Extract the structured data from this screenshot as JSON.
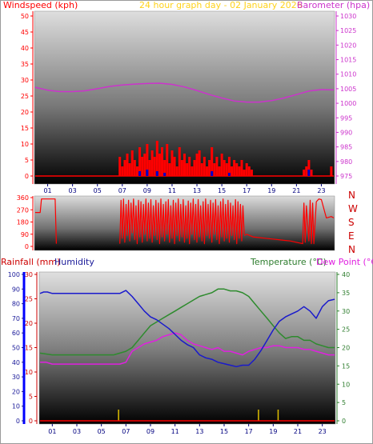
{
  "header": {
    "left": "Windspeed (kph)",
    "center": "24 hour graph day - 02 January 2026",
    "right": "Barometer (hpa)"
  },
  "compass": [
    "N",
    "W",
    "S",
    "E",
    "N"
  ],
  "bottom_header": {
    "rainfall": "Rainfall (mm)",
    "humidity": "Humidity",
    "temperature": "Temperature (°C)",
    "dewpoint": "Dew Point (°C)"
  },
  "colors": {
    "wind": "#ff0000",
    "gust": "#0000cc",
    "barometer": "#cc33cc",
    "direction": "#ff0000",
    "humidity": "#1a1acc",
    "temperature": "#2e8b2e",
    "dewpoint": "#e020e0",
    "rainfall": "#ff0000",
    "rain_left_axis": "#0000ff",
    "title": "#ffd21a"
  },
  "chart_data": [
    {
      "type": "line",
      "name": "wind-barometer",
      "x_ticks": [
        "01",
        "03",
        "05",
        "07",
        "09",
        "11",
        "13",
        "15",
        "17",
        "19",
        "21",
        "23"
      ],
      "xlim": [
        0,
        24
      ],
      "y_left_label": "Windspeed (kph)",
      "y_left_ticks": [
        0,
        5,
        10,
        15,
        20,
        25,
        30,
        35,
        40,
        45,
        50
      ],
      "ylim_left": [
        0,
        50
      ],
      "y_right_label": "Barometer (hpa)",
      "y_right_ticks": [
        975,
        980,
        985,
        990,
        995,
        1000,
        1005,
        1010,
        1015,
        1020,
        1025,
        1030
      ],
      "ylim_right": [
        975,
        1030
      ],
      "barometer": {
        "x": [
          0,
          1,
          2,
          3,
          4,
          5,
          6,
          7,
          8,
          9,
          10,
          11,
          12,
          13,
          14,
          15,
          16,
          17,
          18,
          19,
          20,
          21,
          22,
          23,
          24
        ],
        "y": [
          1005.5,
          1004.5,
          1004,
          1004,
          1004.3,
          1005,
          1005.8,
          1006.3,
          1006.6,
          1006.8,
          1006.9,
          1006.5,
          1005.6,
          1004.4,
          1003,
          1001.8,
          1000.8,
          1000.4,
          1000.4,
          1000.9,
          1001.8,
          1003,
          1004.2,
          1004.7,
          1004.6
        ]
      },
      "wind_gust_bars": {
        "x": [
          6.8,
          7,
          7.2,
          7.4,
          7.6,
          7.8,
          8,
          8.2,
          8.4,
          8.6,
          8.8,
          9,
          9.2,
          9.4,
          9.6,
          9.8,
          10,
          10.2,
          10.4,
          10.6,
          10.8,
          11,
          11.2,
          11.4,
          11.6,
          11.8,
          12,
          12.2,
          12.4,
          12.6,
          12.8,
          13,
          13.2,
          13.4,
          13.6,
          13.8,
          14,
          14.2,
          14.4,
          14.6,
          14.8,
          15,
          15.2,
          15.4,
          15.6,
          15.8,
          16,
          16.2,
          16.4,
          16.6,
          16.8,
          17,
          17.2,
          17.4,
          21.6,
          21.8,
          22,
          22.2,
          23.8
        ],
        "y": [
          6,
          3,
          5,
          7,
          4,
          8,
          5,
          3,
          9,
          6,
          7,
          10,
          5,
          8,
          6,
          11,
          7,
          9,
          5,
          10,
          4,
          8,
          6,
          3,
          9,
          5,
          7,
          4,
          6,
          3,
          5,
          7,
          8,
          4,
          6,
          3,
          5,
          9,
          4,
          6,
          3,
          7,
          5,
          4,
          6,
          3,
          5,
          4,
          3,
          5,
          2,
          4,
          3,
          2,
          2,
          3,
          5,
          2,
          3
        ]
      },
      "wind_avg_bars": {
        "x": [
          8.4,
          9,
          9.8,
          10.4,
          14.2,
          15.6,
          22
        ],
        "y": [
          1.5,
          2,
          1.5,
          1,
          1.5,
          1,
          2
        ]
      }
    },
    {
      "type": "line",
      "name": "wind-direction",
      "xlim": [
        0,
        24
      ],
      "y_ticks": [
        0,
        90,
        180,
        270,
        360
      ],
      "ylim": [
        0,
        360
      ],
      "series": [
        {
          "x": [
            0,
            0.4,
            0.5,
            1,
            1.6,
            1.7
          ],
          "y": [
            250,
            250,
            350,
            350,
            350,
            20
          ]
        },
        {
          "x": [
            6.8,
            6.9,
            7.0,
            7.1,
            7.2,
            7.3,
            7.4,
            7.5,
            7.6,
            7.7,
            7.8,
            7.9,
            8.0,
            8.1,
            8.2,
            8.3,
            8.4,
            8.5,
            8.6,
            8.7,
            8.8,
            8.9,
            9.0,
            9.1,
            9.2,
            9.3,
            9.4,
            9.5,
            9.6,
            9.7,
            9.8,
            9.9,
            10.0,
            10.1,
            10.2,
            10.3,
            10.4,
            10.5,
            10.6,
            10.7,
            10.8,
            10.9,
            11.0,
            11.1,
            11.2,
            11.3,
            11.4,
            11.5,
            11.6,
            11.7,
            11.8,
            11.9,
            12.0,
            12.1,
            12.2,
            12.3,
            12.4,
            12.5,
            12.6,
            12.7,
            12.8,
            12.9,
            13.0,
            13.1,
            13.2,
            13.3,
            13.4,
            13.5,
            13.6,
            13.7,
            13.8,
            13.9,
            14.0,
            14.1,
            14.2,
            14.3,
            14.4,
            14.5,
            14.6,
            14.7,
            14.8,
            14.9,
            15.0,
            15.1,
            15.2,
            15.3,
            15.4,
            15.5,
            15.6,
            15.7,
            15.8,
            15.9,
            16.0,
            16.1,
            16.2,
            16.3,
            16.4,
            16.5,
            16.6,
            16.7,
            16.8
          ],
          "y": [
            20,
            340,
            60,
            350,
            30,
            310,
            80,
            340,
            40,
            320,
            100,
            350,
            50,
            300,
            20,
            340,
            70,
            330,
            30,
            310,
            90,
            350,
            40,
            320,
            60,
            345,
            30,
            300,
            80,
            340,
            50,
            320,
            20,
            350,
            70,
            310,
            40,
            330,
            90,
            345,
            30,
            300,
            60,
            340,
            20,
            320,
            80,
            350,
            40,
            310,
            70,
            345,
            30,
            300,
            60,
            335,
            20,
            320,
            90,
            350,
            50,
            310,
            30,
            345,
            70,
            300,
            40,
            330,
            20,
            350,
            80,
            310,
            60,
            340,
            30,
            320,
            90,
            345,
            50,
            300,
            20,
            330,
            70,
            350,
            40,
            310,
            60,
            340,
            30,
            320,
            80,
            300,
            50,
            345,
            20,
            330,
            60,
            310,
            40,
            300,
            90
          ]
        },
        {
          "x": [
            16.8,
            17,
            17.5,
            18,
            18.5,
            19,
            19.5,
            20,
            20.5,
            21,
            21.5,
            21.6,
            21.7,
            21.8,
            22,
            22.1,
            22.2,
            22.3,
            22.4,
            22.6,
            22.8,
            23,
            23.4,
            23.8,
            24
          ],
          "y": [
            80,
            90,
            70,
            65,
            60,
            55,
            50,
            45,
            40,
            30,
            20,
            320,
            30,
            300,
            40,
            340,
            20,
            320,
            20,
            330,
            350,
            345,
            210,
            220,
            210
          ]
        }
      ]
    },
    {
      "type": "line",
      "name": "temp-humidity-rain",
      "x_ticks": [
        "01",
        "03",
        "05",
        "07",
        "09",
        "11",
        "13",
        "15",
        "17",
        "19",
        "21",
        "23"
      ],
      "xlim": [
        0,
        24
      ],
      "y_rainfall_label": "Rainfall (mm)",
      "y_rainfall_ticks": [
        0,
        5,
        10,
        15,
        20,
        25,
        30
      ],
      "ylim_rainfall": [
        0,
        30
      ],
      "y_humidity_label": "Humidity",
      "y_humidity_ticks": [
        0,
        10,
        20,
        30,
        40,
        50,
        60,
        70,
        80,
        90,
        100
      ],
      "ylim_humidity": [
        0,
        100
      ],
      "y_temperature_label": "Temperature (°C)",
      "y_temperature_ticks": [
        0,
        5,
        10,
        15,
        20,
        25,
        30,
        35,
        40
      ],
      "ylim_temperature": [
        0,
        40
      ],
      "humidity": {
        "x": [
          0,
          0.3,
          0.6,
          1,
          2,
          3,
          4,
          5,
          6,
          6.5,
          7,
          7.5,
          8,
          8.5,
          9,
          9.5,
          10,
          10.5,
          11,
          11.5,
          12,
          12.5,
          13,
          13.5,
          14,
          14.5,
          15,
          15.5,
          16,
          16.5,
          17,
          17.5,
          18,
          18.5,
          19,
          19.5,
          20,
          20.5,
          21,
          21.5,
          22,
          22.5,
          23,
          23.5,
          24
        ],
        "y": [
          87,
          88,
          88,
          87,
          87,
          87,
          87,
          87,
          87,
          87,
          89,
          85,
          80,
          75,
          71,
          69,
          66,
          63,
          59,
          55,
          52,
          50,
          45,
          43,
          42,
          40,
          39,
          38,
          37,
          38,
          38,
          42,
          48,
          55,
          62,
          68,
          71,
          73,
          75,
          78,
          75,
          70,
          78,
          82,
          83
        ]
      },
      "temperature": {
        "x": [
          0,
          1,
          2,
          3,
          4,
          5,
          6,
          6.5,
          7,
          7.5,
          8,
          8.5,
          9,
          9.5,
          10,
          10.5,
          11,
          11.5,
          12,
          12.5,
          13,
          13.5,
          14,
          14.5,
          15,
          15.5,
          16,
          16.5,
          17,
          17.5,
          18,
          18.5,
          19,
          19.5,
          20,
          20.5,
          21,
          21.5,
          22,
          22.5,
          23,
          23.5,
          24
        ],
        "y": [
          18.5,
          18,
          18,
          18,
          18,
          18,
          18,
          18.5,
          19,
          20,
          22,
          24,
          26,
          27,
          28,
          29,
          30,
          31,
          32,
          33,
          34,
          34.5,
          35,
          36,
          36,
          35.5,
          35.5,
          35,
          34,
          32,
          30,
          28,
          26,
          24,
          22.5,
          23,
          23,
          22,
          22,
          21,
          20.5,
          20,
          20
        ]
      },
      "dew_point": {
        "x": [
          0,
          0.5,
          1,
          2,
          3,
          4,
          5,
          6,
          6.5,
          7,
          7.5,
          8,
          8.5,
          9,
          9.5,
          10,
          10.5,
          11,
          11.5,
          12,
          12.5,
          13,
          13.5,
          14,
          14.5,
          15,
          15.5,
          16,
          16.5,
          17,
          17.5,
          18,
          18.5,
          19,
          19.5,
          20,
          20.5,
          21,
          21.5,
          22,
          22.5,
          23,
          23.5,
          24
        ],
        "y": [
          16,
          16,
          15.5,
          15.5,
          15.5,
          15.5,
          15.5,
          15.5,
          15.5,
          16,
          19,
          20,
          21,
          21.5,
          22,
          23,
          23.5,
          24,
          23.5,
          22,
          21,
          20.5,
          20,
          19.5,
          20,
          19,
          19,
          18.5,
          18,
          19,
          19.5,
          20,
          20,
          20.5,
          20.5,
          20,
          20,
          20,
          19.5,
          19.5,
          19,
          18.5,
          18,
          18
        ]
      },
      "rainfall": {
        "x": [
          0,
          24
        ],
        "y": [
          0,
          0
        ]
      },
      "rain_markers_x": [
        6.4,
        17.8,
        19.4
      ]
    }
  ]
}
